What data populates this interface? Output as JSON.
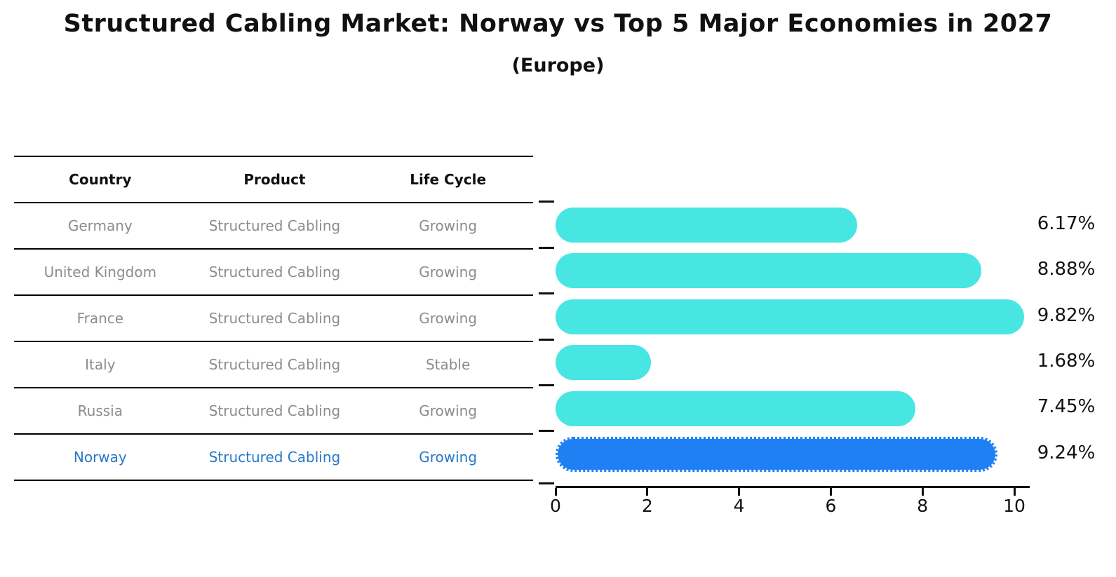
{
  "title": "Structured Cabling Market: Norway vs Top 5 Major Economies in 2027",
  "subtitle": "(Europe)",
  "table": {
    "headers": [
      "Country",
      "Product",
      "Life Cycle"
    ],
    "rows": [
      {
        "country": "Germany",
        "product": "Structured Cabling",
        "life_cycle": "Growing",
        "highlight": false
      },
      {
        "country": "United Kingdom",
        "product": "Structured Cabling",
        "life_cycle": "Growing",
        "highlight": false
      },
      {
        "country": "France",
        "product": "Structured Cabling",
        "life_cycle": "Growing",
        "highlight": false
      },
      {
        "country": "Italy",
        "product": "Structured Cabling",
        "life_cycle": "Stable",
        "highlight": false
      },
      {
        "country": "Russia",
        "product": "Structured Cabling",
        "life_cycle": "Growing",
        "highlight": false
      },
      {
        "country": "Norway",
        "product": "Structured Cabling",
        "life_cycle": "Growing",
        "highlight": true
      }
    ]
  },
  "chart_data": {
    "type": "bar",
    "orientation": "horizontal",
    "title": "Structured Cabling Market: Norway vs Top 5 Major Economies in 2027 (Europe)",
    "categories": [
      "Germany",
      "United Kingdom",
      "France",
      "Italy",
      "Russia",
      "Norway"
    ],
    "values": [
      6.17,
      8.88,
      9.82,
      1.68,
      7.45,
      9.24
    ],
    "value_labels": [
      "6.17%",
      "8.88%",
      "9.82%",
      "1.68%",
      "7.45%",
      "9.24%"
    ],
    "xlabel": "",
    "ylabel": "",
    "xlim": [
      0,
      10.34
    ],
    "x_ticks": [
      0,
      2,
      4,
      6,
      8,
      10
    ],
    "x_tick_labels": [
      "0",
      "2",
      "4",
      "6",
      "8",
      "10"
    ],
    "grid": false,
    "legend": false,
    "highlight_index": 5,
    "bar_color": "#48e6e3",
    "highlight_color": "#1e80f2",
    "highlight_edge_style": "dotted",
    "label_color": "#111111"
  },
  "colors": {
    "background": "#ffffff",
    "table_text": "#8c8c8c",
    "table_header_text": "#111111",
    "highlight_row_text": "#2878c8",
    "table_line": "#000000",
    "axis": "#111111"
  }
}
